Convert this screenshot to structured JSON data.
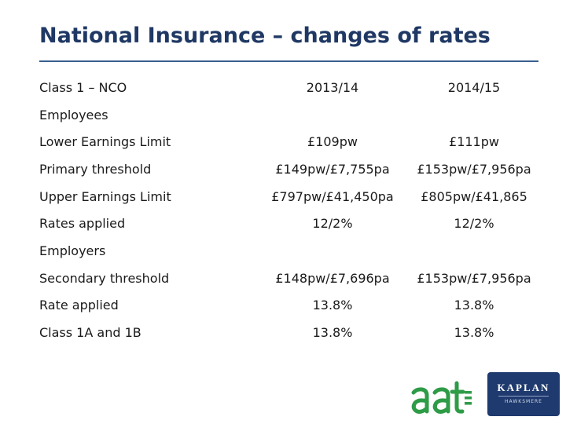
{
  "title": "National Insurance – changes of rates",
  "table": {
    "header": [
      "Class 1 – NCO",
      "2013/14",
      "2014/15"
    ],
    "rows": [
      {
        "label": "Employees",
        "y2013": "",
        "y2014": ""
      },
      {
        "label": "Lower Earnings Limit",
        "y2013": "£109pw",
        "y2014": "£111pw"
      },
      {
        "label": "Primary threshold",
        "y2013": "£149pw/£7,755pa",
        "y2014": "£153pw/£7,956pa"
      },
      {
        "label": "Upper Earnings Limit",
        "y2013": "£797pw/£41,450pa",
        "y2014": "£805pw/£41,865"
      },
      {
        "label": "Rates applied",
        "y2013": "12/2%",
        "y2014": "12/2%"
      },
      {
        "label": "Employers",
        "y2013": "",
        "y2014": ""
      },
      {
        "label": "Secondary threshold",
        "y2013": "£148pw/£7,696pa",
        "y2014": "£153pw/£7,956pa"
      },
      {
        "label": "Rate applied",
        "y2013": "13.8%",
        "y2014": "13.8%"
      },
      {
        "label": "Class 1A and 1B",
        "y2013": "13.8%",
        "y2014": "13.8%"
      }
    ]
  },
  "logos": {
    "aat": "aat",
    "kaplan": "KAPLAN",
    "kaplan_sub": "HAWKSMERE"
  },
  "colors": {
    "title": "#1f3864",
    "rule": "#3a5f8f",
    "aat_green": "#2e9b47",
    "kaplan_navy": "#1f3a6e"
  }
}
